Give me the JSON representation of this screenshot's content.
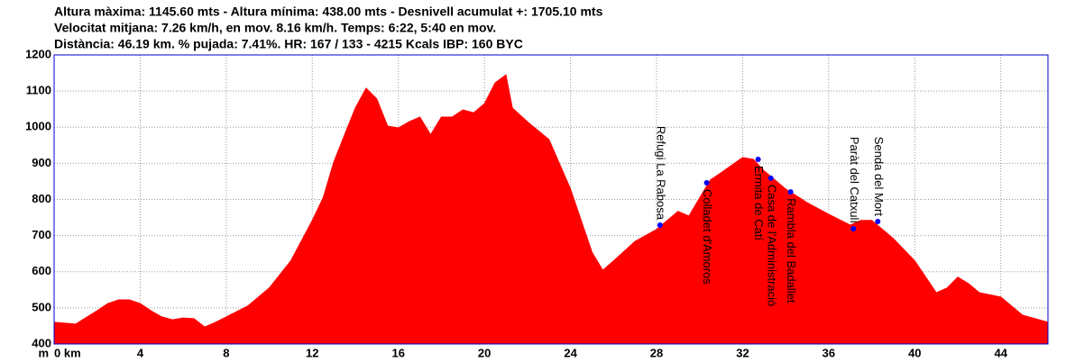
{
  "chart_data": {
    "type": "area",
    "title_lines": [
      "Altura màxima: 1145.60 mts - Altura mínima: 438.00 mts - Desnivell acumulat +: 1705.10 mts",
      "Velocitat mitjana: 7.26 km/h, en mov. 8.16 km/h. Temps: 6:22, 5:40 en mov.",
      "Distància: 46.19 km. % pujada: 7.41%. HR: 167 / 133 - 4215 Kcals IBP: 160 BYC"
    ],
    "y_label": "m",
    "color": "#ff0000",
    "frame_color": "#0000cc",
    "grid": true,
    "x": [
      0,
      1,
      2,
      2.5,
      3,
      3.5,
      4,
      4.5,
      5,
      5.5,
      6,
      6.5,
      7,
      7.5,
      8,
      9,
      10,
      11,
      12,
      12.5,
      13,
      13.5,
      14,
      14.5,
      15,
      15.5,
      16,
      16.5,
      17,
      17.5,
      18,
      18.5,
      19,
      19.5,
      20,
      20.5,
      21,
      21.3,
      22,
      23,
      24,
      25,
      25.5,
      26,
      27,
      28,
      28.5,
      29,
      29.5,
      30,
      30.5,
      31,
      32,
      32.5,
      33,
      34,
      35,
      36,
      37,
      37.5,
      38,
      38.5,
      39,
      40,
      41,
      41.5,
      42,
      42.5,
      43,
      44,
      45,
      46.19
    ],
    "values": [
      460,
      455,
      492,
      512,
      522,
      522,
      512,
      492,
      475,
      467,
      472,
      470,
      447,
      460,
      475,
      505,
      555,
      630,
      742,
      804,
      904,
      979,
      1053,
      1108,
      1078,
      1003,
      998,
      1015,
      1028,
      979,
      1028,
      1028,
      1048,
      1040,
      1065,
      1123,
      1145,
      1053,
      1015,
      966,
      829,
      654,
      604,
      630,
      684,
      717,
      742,
      767,
      754,
      804,
      854,
      874,
      916,
      911,
      879,
      829,
      791,
      759,
      729,
      742,
      742,
      717,
      692,
      630,
      542,
      555,
      585,
      567,
      542,
      530,
      480,
      460
    ],
    "xlim": [
      0,
      46.19
    ],
    "ylim": [
      400,
      1200
    ],
    "xticks": [
      {
        "value": 0,
        "label": "0 km"
      },
      4,
      8,
      12,
      16,
      20,
      24,
      28,
      32,
      36,
      40,
      44
    ],
    "yticks": [
      400,
      500,
      600,
      700,
      800,
      900,
      1000,
      1100,
      1200
    ],
    "waypoints": [
      {
        "label": "Refugi La Rabosa",
        "x": 28.16,
        "y": 729,
        "side": "above"
      },
      {
        "label": "Colladet d'Amoros",
        "x": 30.33,
        "y": 846,
        "side": "below"
      },
      {
        "label": "Ermita de Catí",
        "x": 32.72,
        "y": 911,
        "side": "below"
      },
      {
        "label": "Casa de l'Administració",
        "x": 33.31,
        "y": 859,
        "side": "below"
      },
      {
        "label": "Rambla del Badallet",
        "x": 34.23,
        "y": 821,
        "side": "below"
      },
      {
        "label": "Paràt del Catxulí",
        "x": 37.15,
        "y": 719,
        "side": "above"
      },
      {
        "label": "Senda del Mort",
        "x": 38.28,
        "y": 739,
        "side": "above"
      }
    ],
    "waypoint_color": "#0000ff"
  }
}
